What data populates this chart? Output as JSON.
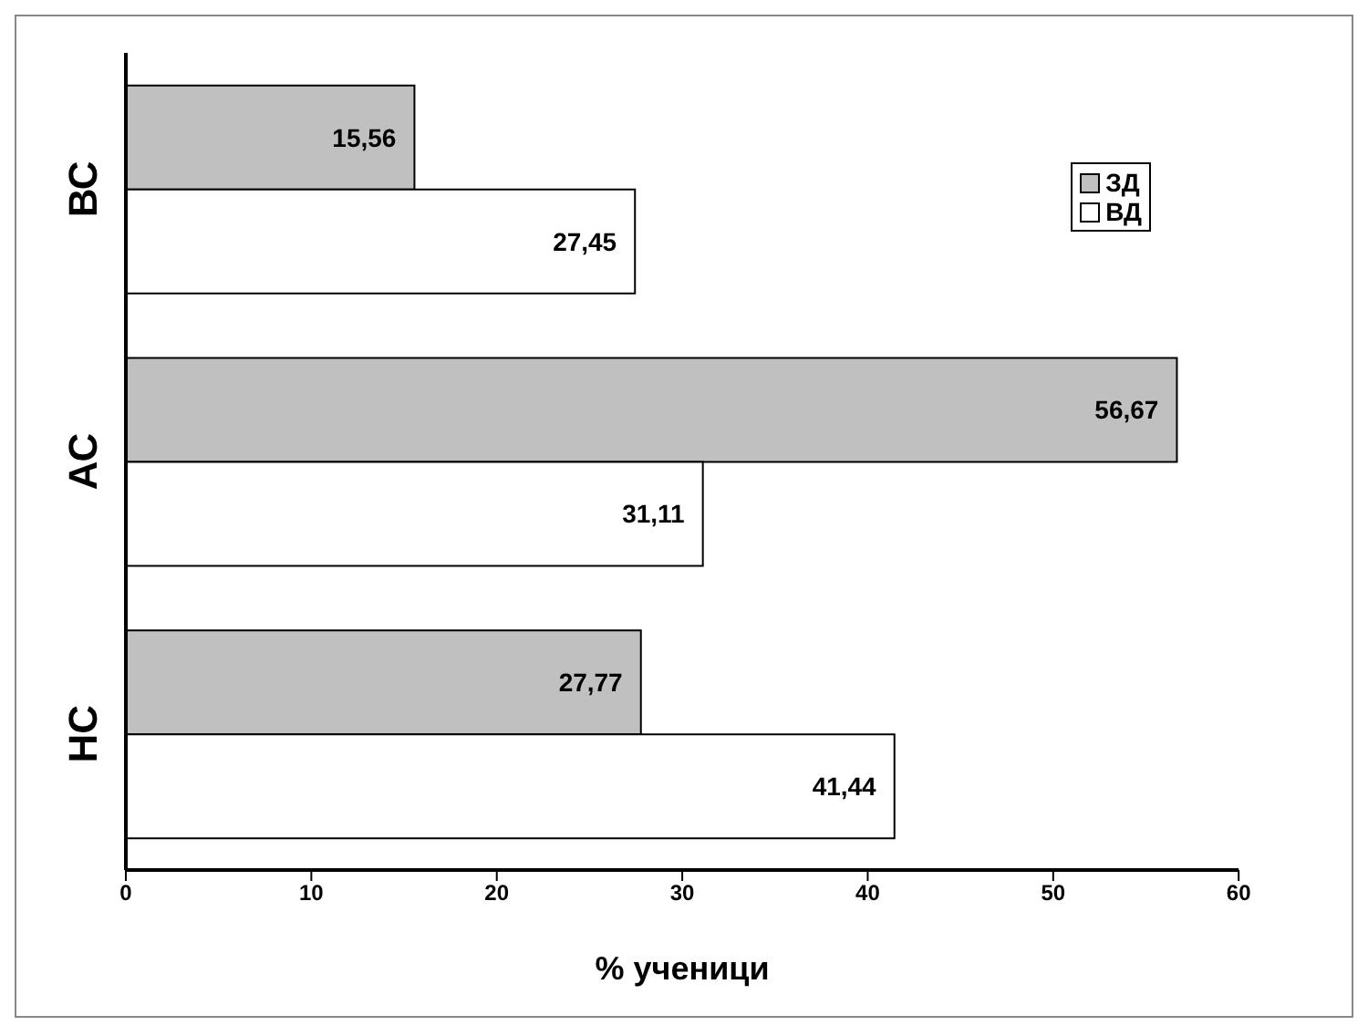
{
  "chart_data": {
    "type": "bar",
    "orientation": "horizontal",
    "categories": [
      "ВС",
      "АС",
      "НС"
    ],
    "series": [
      {
        "name": "ЗД",
        "color": "#c0c0c0",
        "values": [
          15.56,
          56.67,
          27.77
        ],
        "value_labels": [
          "15,56",
          "56,67",
          "27,77"
        ]
      },
      {
        "name": "ВД",
        "color": "#ffffff",
        "values": [
          27.45,
          31.11,
          41.44
        ],
        "value_labels": [
          "27,45",
          "31,11",
          "41,44"
        ]
      }
    ],
    "xlabel": "% ученици",
    "xlim": [
      0,
      60
    ],
    "xticks": [
      0,
      10,
      20,
      30,
      40,
      50,
      60
    ],
    "legend": "top right"
  }
}
